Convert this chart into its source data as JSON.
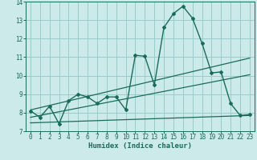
{
  "xlabel": "Humidex (Indice chaleur)",
  "bg_color": "#cceaea",
  "grid_color": "#99cccc",
  "line_color": "#1a6b5a",
  "xlim": [
    -0.5,
    23.5
  ],
  "ylim": [
    7,
    14
  ],
  "yticks": [
    7,
    8,
    9,
    10,
    11,
    12,
    13,
    14
  ],
  "xticks": [
    0,
    1,
    2,
    3,
    4,
    5,
    6,
    7,
    8,
    9,
    10,
    11,
    12,
    13,
    14,
    15,
    16,
    17,
    18,
    19,
    20,
    21,
    22,
    23
  ],
  "main_line_x": [
    0,
    1,
    2,
    3,
    4,
    5,
    6,
    7,
    8,
    9,
    10,
    11,
    12,
    13,
    14,
    15,
    16,
    17,
    18,
    19,
    20,
    21,
    22,
    23
  ],
  "main_line_y": [
    8.1,
    7.75,
    8.35,
    7.4,
    8.65,
    9.0,
    8.85,
    8.5,
    8.85,
    8.85,
    8.15,
    11.1,
    11.05,
    9.5,
    12.6,
    13.35,
    13.75,
    13.1,
    11.75,
    10.15,
    10.2,
    8.5,
    7.85,
    7.9
  ],
  "trend1_x": [
    0,
    23
  ],
  "trend1_y": [
    7.75,
    10.05
  ],
  "trend2_x": [
    0,
    23
  ],
  "trend2_y": [
    7.45,
    7.85
  ],
  "trend3_x": [
    0,
    23
  ],
  "trend3_y": [
    8.15,
    10.95
  ]
}
